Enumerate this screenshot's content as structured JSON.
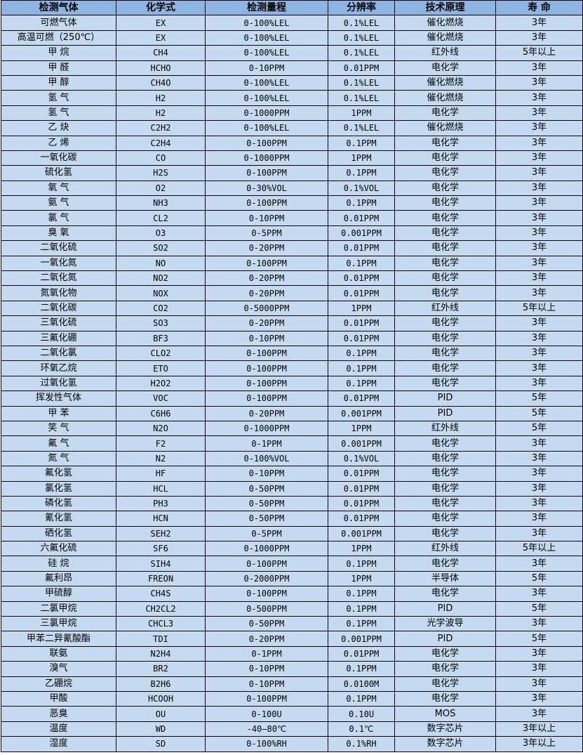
{
  "colors": {
    "header_bg": "#8db4e2",
    "row_bg": "#c5d9f1",
    "border": "#000000"
  },
  "table": {
    "headers": [
      "检测气体",
      "化学式",
      "检测量程",
      "分辨率",
      "技术原理",
      "寿 命"
    ],
    "rows": [
      [
        "可燃气体",
        "EX",
        "0-100%LEL",
        "0.1%LEL",
        "催化燃烧",
        "3年"
      ],
      [
        "高温可燃（250℃）",
        "EX",
        "0-100%LEL",
        "0.1%LEL",
        "催化燃烧",
        "3年"
      ],
      [
        "甲 烷",
        "CH4",
        "0-100%LEL",
        "0.1%LEL",
        "红外线",
        "5年以上"
      ],
      [
        "甲 醛",
        "HCHO",
        "0-10PPM",
        "0.01PPM",
        "电化学",
        "3年"
      ],
      [
        "甲 醇",
        "CH4O",
        "0-100%LEL",
        "0.1%LEL",
        "催化燃烧",
        "3年"
      ],
      [
        "氢 气",
        "H2",
        "0-100%LEL",
        "0.1%LEL",
        "催化燃烧",
        "3年"
      ],
      [
        "氢 气",
        "H2",
        "0-1000PPM",
        "1PPM",
        "电化学",
        "3年"
      ],
      [
        "乙 炔",
        "C2H2",
        "0-100%LEL",
        "0.1%LEL",
        "催化燃烧",
        "3年"
      ],
      [
        "乙 烯",
        "C2H4",
        "0-100PPM",
        "0.1PPM",
        "电化学",
        "3年"
      ],
      [
        "一氧化碳",
        "CO",
        "0-1000PPM",
        "1PPM",
        "电化学",
        "3年"
      ],
      [
        "硫化氢",
        "H2S",
        "0-100PPM",
        "0.1PPM",
        "电化学",
        "3年"
      ],
      [
        "氧 气",
        "O2",
        "0-30%VOL",
        "0.1%VOL",
        "电化学",
        "3年"
      ],
      [
        "氨 气",
        "NH3",
        "0-100PPM",
        "0.1PPM",
        "电化学",
        "3年"
      ],
      [
        "氯 气",
        "CL2",
        "0-10PPM",
        "0.01PPM",
        "电化学",
        "3年"
      ],
      [
        "臭 氧",
        "O3",
        "0-5PPM",
        "0.001PPM",
        "电化学",
        "3年"
      ],
      [
        "二氧化硫",
        "SO2",
        "0-20PPM",
        "0.01PPM",
        "电化学",
        "3年"
      ],
      [
        "一氧化氮",
        "NO",
        "0-100PPM",
        "0.1PPM",
        "电化学",
        "3年"
      ],
      [
        "二氧化氮",
        "NO2",
        "0-20PPM",
        "0.01PPM",
        "电化学",
        "3年"
      ],
      [
        "氮氧化物",
        "NOX",
        "0-20PPM",
        "0.01PPM",
        "电化学",
        "3年"
      ],
      [
        "二氧化碳",
        "CO2",
        "0-5000PPM",
        "1PPM",
        "红外线",
        "5年以上"
      ],
      [
        "三氧化硫",
        "SO3",
        "0-20PPM",
        "0.01PPM",
        "电化学",
        "3年"
      ],
      [
        "三氟化硼",
        "BF3",
        "0-10PPM",
        "0.01PPM",
        "电化学",
        "3年"
      ],
      [
        "二氧化氯",
        "CLO2",
        "0-100PPM",
        "0.1PPM",
        "电化学",
        "3年"
      ],
      [
        "环氧乙烷",
        "ETO",
        "0-100PPM",
        "0.1PPM",
        "电化学",
        "3年"
      ],
      [
        "过氧化氢",
        "H2O2",
        "0-100PPM",
        "0.1PPM",
        "电化学",
        "3年"
      ],
      [
        "挥发性气体",
        "VOC",
        "0-100PPM",
        "0.01PPM",
        "PID",
        "5年"
      ],
      [
        "甲 苯",
        "C6H6",
        "0-20PPM",
        "0.001PPM",
        "PID",
        "5年"
      ],
      [
        "笑 气",
        "N2O",
        "0-1000PPM",
        "1PPM",
        "红外线",
        "5年"
      ],
      [
        "氟 气",
        "F2",
        "0-1PPM",
        "0.001PPM",
        "电化学",
        "3年"
      ],
      [
        "氮 气",
        "N2",
        "0-100%VOL",
        "0.1%VOL",
        "电化学",
        "3年"
      ],
      [
        "氟化氢",
        "HF",
        "0-10PPM",
        "0.01PPM",
        "电化学",
        "3年"
      ],
      [
        "氯化氢",
        "HCL",
        "0-50PPM",
        "0.01PPM",
        "电化学",
        "3年"
      ],
      [
        "磷化氢",
        "PH3",
        "0-50PPM",
        "0.01PPM",
        "电化学",
        "3年"
      ],
      [
        "氰化氢",
        "HCN",
        "0-50PPM",
        "0.01PPM",
        "电化学",
        "3年"
      ],
      [
        "硒化氢",
        "SEH2",
        "0-5PPM",
        "0.001PPM",
        "电化学",
        "3年"
      ],
      [
        "六氟化硫",
        "SF6",
        "0-1000PPM",
        "1PPM",
        "红外线",
        "5年以上"
      ],
      [
        "硅 烷",
        "SIH4",
        "0-100PPM",
        "0.1PPM",
        "电化学",
        "3年"
      ],
      [
        "氟利昂",
        "FREON",
        "0-2000PPM",
        "1PPM",
        "半导体",
        "5年"
      ],
      [
        "甲硫醇",
        "CH4S",
        "0-100PPM",
        "0.1PPM",
        "电化学",
        "3年"
      ],
      [
        "二氯甲烷",
        "CH2CL2",
        "0-500PPM",
        "0.1PPM",
        "PID",
        "5年"
      ],
      [
        "三氯甲烷",
        "CHCL3",
        "0-50PPM",
        "0.1PPM",
        "光学波导",
        "3年"
      ],
      [
        "甲苯二异氰酸酯",
        "TDI",
        "0-20PPM",
        "0.001PPM",
        "PID",
        "5年"
      ],
      [
        "联氨",
        "N2H4",
        "0-1PPM",
        "0.01PPM",
        "电化学",
        "3年"
      ],
      [
        "溴气",
        "BR2",
        "0-10PPM",
        "0.1PPM",
        "电化学",
        "3年"
      ],
      [
        "乙硼烷",
        "B2H6",
        "0-10PPM",
        "0.0100M",
        "电化学",
        "3年"
      ],
      [
        "甲酸",
        "HCOOH",
        "0-100PPM",
        "0.1PPM",
        "电化学",
        "3年"
      ],
      [
        "恶臭",
        "OU",
        "0-100U",
        "0.10U",
        "MOS",
        "3年"
      ],
      [
        "温度",
        "WD",
        "-40—80℃",
        "0.1℃",
        "数字芯片",
        "3年以上"
      ],
      [
        "湿度",
        "SD",
        "0-100%RH",
        "0.1%RH",
        "数字芯片",
        "3年以上"
      ]
    ]
  }
}
